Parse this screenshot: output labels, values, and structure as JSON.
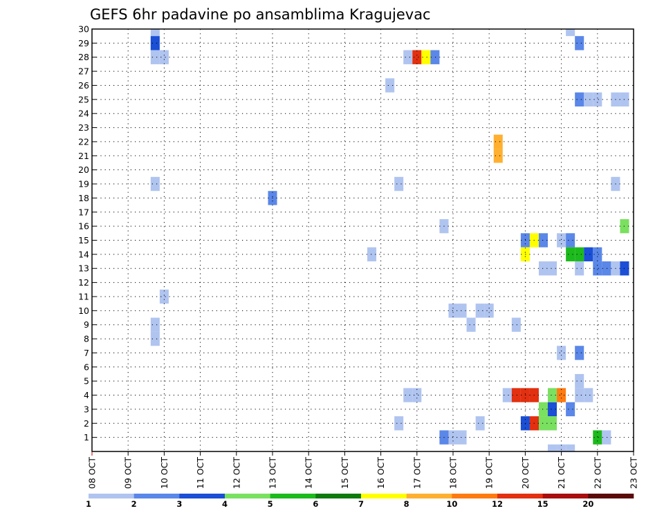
{
  "chart_data": {
    "type": "heatmap",
    "title": "GEFS 6hr padavine po ansamblima Kragujevac",
    "xlabel": "",
    "ylabel": "",
    "x_ticks": [
      "08 OCT",
      "09 OCT",
      "10 OCT",
      "11 OCT",
      "12 OCT",
      "13 OCT",
      "14 OCT",
      "15 OCT",
      "16 OCT",
      "17 OCT",
      "18 OCT",
      "19 OCT",
      "20 OCT",
      "21 OCT",
      "22 OCT",
      "23 OCT"
    ],
    "x_range": [
      0,
      15
    ],
    "y_range": [
      0,
      30
    ],
    "y_ticks": [
      1,
      2,
      3,
      4,
      5,
      6,
      7,
      8,
      9,
      10,
      11,
      12,
      13,
      14,
      15,
      16,
      17,
      18,
      19,
      20,
      21,
      22,
      23,
      24,
      25,
      26,
      27,
      28,
      29,
      30
    ],
    "grid": true,
    "legend": {
      "placement": "bottom",
      "colors": [
        "#b0c4f0",
        "#5a87e8",
        "#1a4fd6",
        "#7ae060",
        "#1cba1c",
        "#0e7a0e",
        "#ffff00",
        "#ffb030",
        "#ff7a10",
        "#e23010",
        "#a80e0e",
        "#5a0a0a"
      ],
      "labels": [
        "1",
        "2",
        "3",
        "4",
        "5",
        "6",
        "7",
        "8",
        "10",
        "12",
        "15",
        "20"
      ]
    },
    "cell_width_days": 0.25,
    "cells": [
      {
        "t": 1.75,
        "m": 30,
        "c": 1
      },
      {
        "t": 1.75,
        "m": 29,
        "c": 3
      },
      {
        "t": 1.75,
        "m": 28,
        "c": 1
      },
      {
        "t": 2.0,
        "m": 28,
        "c": 1
      },
      {
        "t": 1.75,
        "m": 19,
        "c": 1
      },
      {
        "t": 2.0,
        "m": 11,
        "c": 1
      },
      {
        "t": 1.75,
        "m": 9,
        "c": 1
      },
      {
        "t": 1.75,
        "m": 8,
        "c": 1
      },
      {
        "t": 5.0,
        "m": 18,
        "c": 2
      },
      {
        "t": 7.75,
        "m": 14,
        "c": 1
      },
      {
        "t": 8.25,
        "m": 26,
        "c": 1
      },
      {
        "t": 8.5,
        "m": 19,
        "c": 1
      },
      {
        "t": 8.5,
        "m": 2,
        "c": 1
      },
      {
        "t": 8.75,
        "m": 4,
        "c": 1
      },
      {
        "t": 9.0,
        "m": 4,
        "c": 1
      },
      {
        "t": 8.75,
        "m": 28,
        "c": 1
      },
      {
        "t": 9.0,
        "m": 28,
        "c": 10
      },
      {
        "t": 9.25,
        "m": 28,
        "c": 7
      },
      {
        "t": 9.5,
        "m": 28,
        "c": 2
      },
      {
        "t": 9.75,
        "m": 16,
        "c": 1
      },
      {
        "t": 9.75,
        "m": 1,
        "c": 2
      },
      {
        "t": 10.0,
        "m": 1,
        "c": 1
      },
      {
        "t": 10.25,
        "m": 1,
        "c": 1
      },
      {
        "t": 10.5,
        "m": 9,
        "c": 1
      },
      {
        "t": 10.0,
        "m": 10,
        "c": 1
      },
      {
        "t": 10.25,
        "m": 10,
        "c": 1
      },
      {
        "t": 10.75,
        "m": 10,
        "c": 1
      },
      {
        "t": 11.0,
        "m": 10,
        "c": 1
      },
      {
        "t": 10.75,
        "m": 2,
        "c": 1
      },
      {
        "t": 11.25,
        "m": 22,
        "c": 8
      },
      {
        "t": 11.25,
        "m": 21,
        "c": 8
      },
      {
        "t": 11.75,
        "m": 9,
        "c": 1
      },
      {
        "t": 11.5,
        "m": 4,
        "c": 1
      },
      {
        "t": 11.75,
        "m": 4,
        "c": 10
      },
      {
        "t": 12.0,
        "m": 4,
        "c": 10
      },
      {
        "t": 12.25,
        "m": 4,
        "c": 10
      },
      {
        "t": 12.0,
        "m": 2,
        "c": 3
      },
      {
        "t": 12.25,
        "m": 2,
        "c": 10
      },
      {
        "t": 12.0,
        "m": 15,
        "c": 2
      },
      {
        "t": 12.25,
        "m": 15,
        "c": 7
      },
      {
        "t": 12.5,
        "m": 15,
        "c": 2
      },
      {
        "t": 12.0,
        "m": 14,
        "c": 7
      },
      {
        "t": 12.5,
        "m": 13,
        "c": 1
      },
      {
        "t": 12.75,
        "m": 13,
        "c": 1
      },
      {
        "t": 12.5,
        "m": 3,
        "c": 4
      },
      {
        "t": 12.75,
        "m": 3,
        "c": 3
      },
      {
        "t": 12.5,
        "m": 2,
        "c": 4
      },
      {
        "t": 12.75,
        "m": 2,
        "c": 4
      },
      {
        "t": 12.75,
        "m": 4,
        "c": 4
      },
      {
        "t": 13.0,
        "m": 4,
        "c": 9
      },
      {
        "t": 13.0,
        "m": 15,
        "c": 1
      },
      {
        "t": 13.25,
        "m": 15,
        "c": 2
      },
      {
        "t": 13.25,
        "m": 14,
        "c": 5
      },
      {
        "t": 13.5,
        "m": 14,
        "c": 5
      },
      {
        "t": 13.75,
        "m": 14,
        "c": 3
      },
      {
        "t": 14.0,
        "m": 14,
        "c": 2
      },
      {
        "t": 13.5,
        "m": 13,
        "c": 1
      },
      {
        "t": 14.0,
        "m": 13,
        "c": 2
      },
      {
        "t": 14.25,
        "m": 13,
        "c": 2
      },
      {
        "t": 14.5,
        "m": 13,
        "c": 1
      },
      {
        "t": 14.75,
        "m": 13,
        "c": 3
      },
      {
        "t": 13.5,
        "m": 29,
        "c": 2
      },
      {
        "t": 13.5,
        "m": 25,
        "c": 2
      },
      {
        "t": 13.75,
        "m": 25,
        "c": 1
      },
      {
        "t": 14.0,
        "m": 25,
        "c": 1
      },
      {
        "t": 14.5,
        "m": 25,
        "c": 1
      },
      {
        "t": 14.75,
        "m": 25,
        "c": 1
      },
      {
        "t": 13.25,
        "m": 30,
        "c": 1
      },
      {
        "t": 14.5,
        "m": 19,
        "c": 1
      },
      {
        "t": 14.75,
        "m": 16,
        "c": 4
      },
      {
        "t": 13.0,
        "m": 7,
        "c": 1
      },
      {
        "t": 13.5,
        "m": 7,
        "c": 2
      },
      {
        "t": 13.5,
        "m": 5,
        "c": 1
      },
      {
        "t": 13.5,
        "m": 4,
        "c": 1
      },
      {
        "t": 13.75,
        "m": 4,
        "c": 1
      },
      {
        "t": 13.25,
        "m": 3,
        "c": 2
      },
      {
        "t": 14.0,
        "m": 1,
        "c": 5
      },
      {
        "t": 14.25,
        "m": 1,
        "c": 1
      },
      {
        "t": 12.75,
        "m": 0,
        "c": 1
      },
      {
        "t": 13.0,
        "m": 0,
        "c": 1
      },
      {
        "t": 13.25,
        "m": 0,
        "c": 1
      }
    ]
  }
}
